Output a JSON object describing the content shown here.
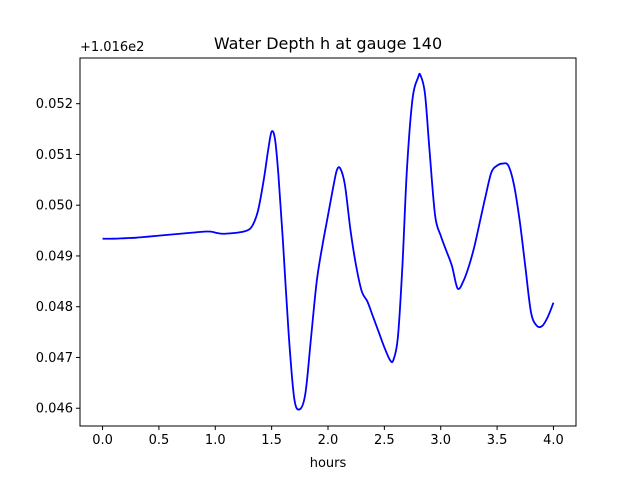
{
  "chart_data": {
    "type": "line",
    "title": "Water Depth h at gauge 140",
    "xlabel": "hours",
    "ylabel": "",
    "y_offset_label": "+1.016e2",
    "xlim": [
      -0.2,
      4.2
    ],
    "ylim": [
      0.04565,
      0.0529
    ],
    "x_ticks": [
      0.0,
      0.5,
      1.0,
      1.5,
      2.0,
      2.5,
      3.0,
      3.5,
      4.0
    ],
    "x_tick_labels": [
      "0.0",
      "0.5",
      "1.0",
      "1.5",
      "2.0",
      "2.5",
      "3.0",
      "3.5",
      "4.0"
    ],
    "y_ticks": [
      0.046,
      0.047,
      0.048,
      0.049,
      0.05,
      0.051,
      0.052
    ],
    "y_tick_labels": [
      "0.046",
      "0.047",
      "0.048",
      "0.049",
      "0.050",
      "0.051",
      "0.052"
    ],
    "grid": false,
    "series": [
      {
        "color": "#0000ff",
        "points": [
          [
            0.0,
            0.04934
          ],
          [
            0.1,
            0.04934
          ],
          [
            0.2,
            0.04935
          ],
          [
            0.3,
            0.04936
          ],
          [
            0.4,
            0.04938
          ],
          [
            0.5,
            0.0494
          ],
          [
            0.6,
            0.04942
          ],
          [
            0.7,
            0.04944
          ],
          [
            0.8,
            0.04946
          ],
          [
            0.9,
            0.04948
          ],
          [
            0.96,
            0.04948
          ],
          [
            1.0,
            0.04946
          ],
          [
            1.05,
            0.04944
          ],
          [
            1.1,
            0.04944
          ],
          [
            1.2,
            0.04946
          ],
          [
            1.28,
            0.0495
          ],
          [
            1.33,
            0.0496
          ],
          [
            1.38,
            0.0499
          ],
          [
            1.43,
            0.0505
          ],
          [
            1.47,
            0.0511
          ],
          [
            1.5,
            0.05145
          ],
          [
            1.53,
            0.0513
          ],
          [
            1.56,
            0.0506
          ],
          [
            1.6,
            0.0493
          ],
          [
            1.65,
            0.0475
          ],
          [
            1.7,
            0.0462
          ],
          [
            1.75,
            0.04598
          ],
          [
            1.8,
            0.0463
          ],
          [
            1.85,
            0.0474
          ],
          [
            1.9,
            0.0485
          ],
          [
            1.95,
            0.0492
          ],
          [
            2.0,
            0.0498
          ],
          [
            2.05,
            0.0504
          ],
          [
            2.08,
            0.0507
          ],
          [
            2.11,
            0.05072
          ],
          [
            2.15,
            0.0504
          ],
          [
            2.2,
            0.0495
          ],
          [
            2.25,
            0.0488
          ],
          [
            2.3,
            0.0483
          ],
          [
            2.35,
            0.0481
          ],
          [
            2.4,
            0.0478
          ],
          [
            2.45,
            0.0475
          ],
          [
            2.5,
            0.0472
          ],
          [
            2.55,
            0.04695
          ],
          [
            2.58,
            0.04695
          ],
          [
            2.62,
            0.0474
          ],
          [
            2.66,
            0.0488
          ],
          [
            2.7,
            0.0507
          ],
          [
            2.75,
            0.0521
          ],
          [
            2.8,
            0.05252
          ],
          [
            2.82,
            0.05256
          ],
          [
            2.86,
            0.0522
          ],
          [
            2.9,
            0.0511
          ],
          [
            2.95,
            0.0498
          ],
          [
            3.0,
            0.0494
          ],
          [
            3.05,
            0.0491
          ],
          [
            3.1,
            0.0488
          ],
          [
            3.15,
            0.04836
          ],
          [
            3.2,
            0.0485
          ],
          [
            3.25,
            0.0488
          ],
          [
            3.3,
            0.0492
          ],
          [
            3.35,
            0.0497
          ],
          [
            3.4,
            0.0502
          ],
          [
            3.45,
            0.05065
          ],
          [
            3.5,
            0.05078
          ],
          [
            3.55,
            0.05082
          ],
          [
            3.6,
            0.05078
          ],
          [
            3.65,
            0.0504
          ],
          [
            3.7,
            0.0497
          ],
          [
            3.75,
            0.0488
          ],
          [
            3.8,
            0.0479
          ],
          [
            3.85,
            0.04763
          ],
          [
            3.9,
            0.04762
          ],
          [
            3.95,
            0.0478
          ],
          [
            4.0,
            0.04808
          ]
        ]
      }
    ]
  }
}
